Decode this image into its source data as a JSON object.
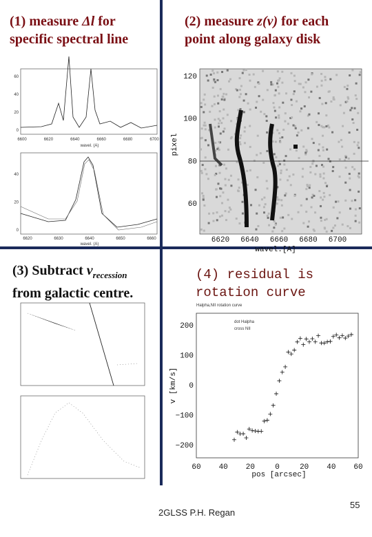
{
  "panel1": {
    "label": {
      "start": "(1) measure ",
      "symbol": "Δl",
      "end": " for",
      "line2": "specific spectral line"
    },
    "top_plot": {
      "yticks": [
        "60",
        "40",
        "20",
        "0"
      ],
      "xticks": [
        "6600",
        "6620",
        "6640",
        "6660",
        "6680",
        "6700"
      ],
      "xlabel": "wavel. (A)"
    },
    "bottom_plot": {
      "yticks": [
        "40",
        "20",
        "0"
      ],
      "xticks": [
        "6620",
        "6630",
        "6640",
        "6650",
        "6660"
      ],
      "xlabel": "wavel. (A)"
    }
  },
  "panel2": {
    "label": {
      "start": "(2) measure ",
      "symbol": "z(v)",
      "end": " for each",
      "line2": "point along galaxy disk"
    },
    "plot": {
      "yticks": [
        "120",
        "100",
        "80",
        "60"
      ],
      "xticks": [
        "6620",
        "6640",
        "6660",
        "6680",
        "6700"
      ],
      "xlabel": "wavel.[A]",
      "ylabel": "pixel"
    }
  },
  "panel3": {
    "label": {
      "start": "(3) Subtract ",
      "symbol": "v",
      "subscript": "recession",
      "line2": "from galactic centre."
    }
  },
  "panel4": {
    "label": {
      "line1": "(4) residual is",
      "line2": "rotation curve"
    },
    "plot": {
      "title": "Halpha,NII rotation curve",
      "legend": [
        "dot Halpha",
        "cross NII"
      ],
      "yticks": [
        "200",
        "100",
        "0",
        "−100",
        "−200"
      ],
      "xticks": [
        "60",
        "40",
        "20",
        "0",
        "20",
        "40",
        "60"
      ],
      "xlabel": "pos [arcsec]",
      "ylabel": "v [km/s]"
    }
  },
  "footer": {
    "author": "2GLSS P.H. Regan",
    "page": "55"
  }
}
